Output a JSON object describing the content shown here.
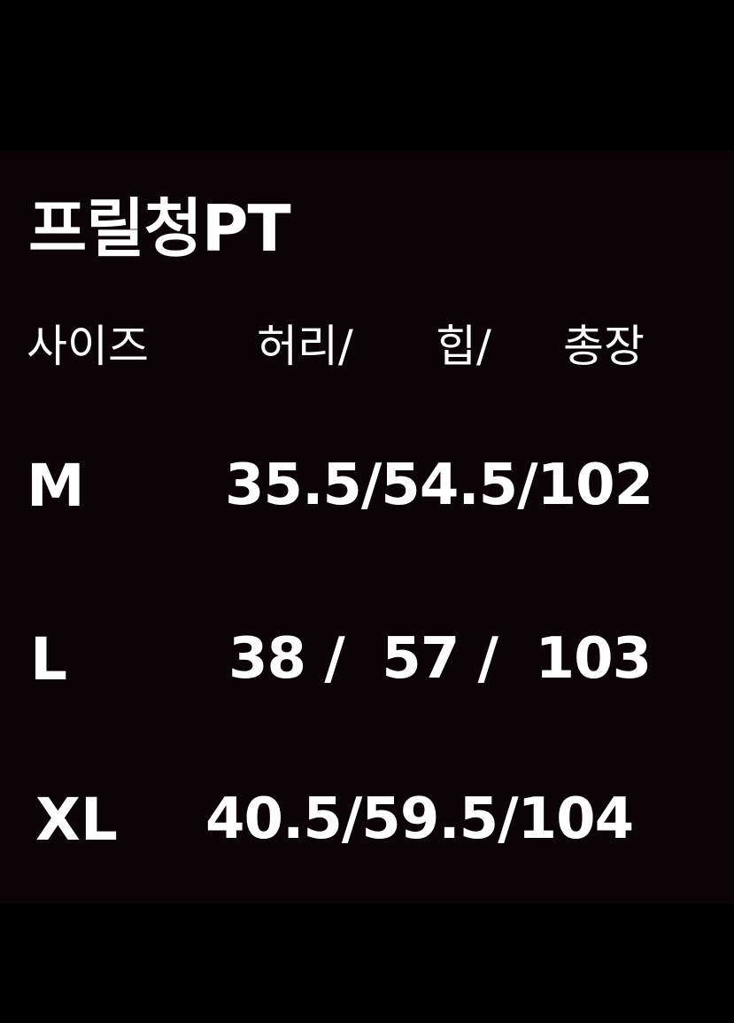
{
  "title": "프릴청PT",
  "header": {
    "size": "사이즈",
    "waist": "허리/",
    "hip": "힙/",
    "length": "총장"
  },
  "rows": [
    {
      "size": "M",
      "values": "35.5/54.5/102"
    },
    {
      "size": "L",
      "values": "38 /  57 /  103"
    },
    {
      "size": "XL",
      "values": "40.5/59.5/104"
    }
  ],
  "colors": {
    "background": "#000000",
    "text": "#ffffff"
  }
}
